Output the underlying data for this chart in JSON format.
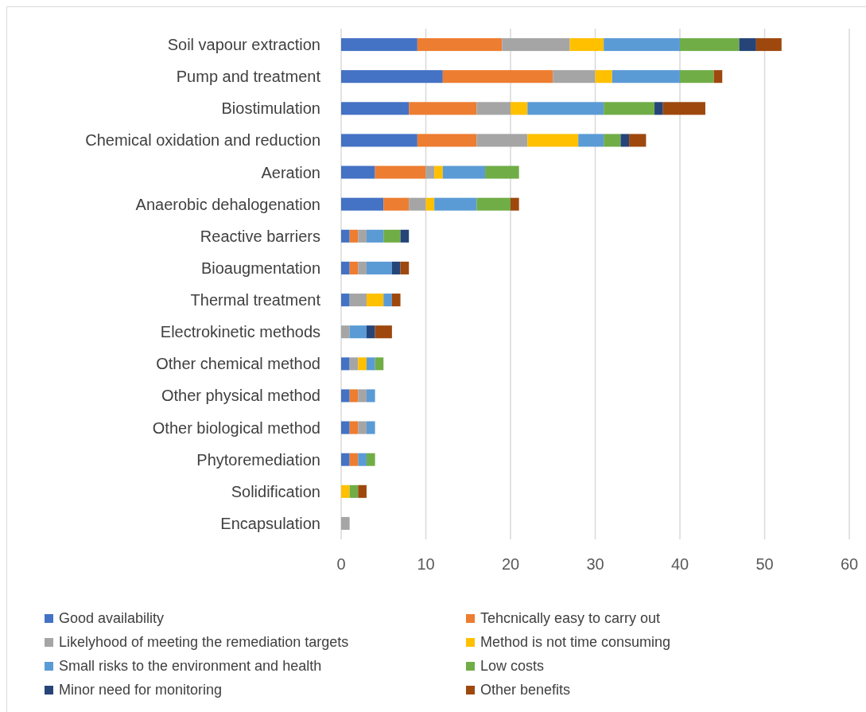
{
  "chart_data": {
    "type": "bar",
    "orientation": "horizontal",
    "stacked": true,
    "categories": [
      "Soil vapour extraction",
      "Pump and treatment",
      "Biostimulation",
      "Chemical oxidation and reduction",
      "Aeration",
      "Anaerobic dehalogenation",
      "Reactive barriers",
      "Bioaugmentation",
      "Thermal treatment",
      "Electrokinetic methods",
      "Other chemical method",
      "Other physical method",
      "Other biological method",
      "Phytoremediation",
      "Solidification",
      "Encapsulation"
    ],
    "series": [
      {
        "name": "Good availability",
        "color": "#4472c4",
        "values": [
          9,
          12,
          8,
          9,
          4,
          5,
          1,
          1,
          1,
          0,
          1,
          1,
          1,
          1,
          0,
          0
        ]
      },
      {
        "name": "Tehcnically easy to carry out",
        "color": "#ed7d31",
        "values": [
          10,
          13,
          8,
          7,
          6,
          3,
          1,
          1,
          0,
          0,
          0,
          1,
          1,
          1,
          0,
          0
        ]
      },
      {
        "name": "Likelyhood of meeting the remediation targets",
        "color": "#a5a5a5",
        "values": [
          8,
          5,
          4,
          6,
          1,
          2,
          1,
          1,
          2,
          1,
          1,
          1,
          1,
          0,
          0,
          1
        ]
      },
      {
        "name": "Method is not time consuming",
        "color": "#ffc000",
        "values": [
          4,
          2,
          2,
          6,
          1,
          1,
          0,
          0,
          2,
          0,
          1,
          0,
          0,
          0,
          1,
          0
        ]
      },
      {
        "name": "Small risks to the environment and health",
        "color": "#5b9bd5",
        "values": [
          9,
          8,
          9,
          3,
          5,
          5,
          2,
          3,
          1,
          2,
          1,
          1,
          1,
          1,
          0,
          0
        ]
      },
      {
        "name": "Low costs",
        "color": "#70ad47",
        "values": [
          7,
          4,
          6,
          2,
          4,
          4,
          2,
          0,
          0,
          0,
          1,
          0,
          0,
          1,
          1,
          0
        ]
      },
      {
        "name": "Minor need for monitoring",
        "color": "#264478",
        "values": [
          2,
          0,
          1,
          1,
          0,
          0,
          1,
          1,
          0,
          1,
          0,
          0,
          0,
          0,
          0,
          0
        ]
      },
      {
        "name": "Other benefits",
        "color": "#9e480e",
        "values": [
          3,
          1,
          5,
          2,
          0,
          1,
          0,
          1,
          1,
          2,
          0,
          0,
          0,
          0,
          1,
          0
        ]
      }
    ],
    "xlim": [
      0,
      60
    ],
    "xticks": [
      0,
      10,
      20,
      30,
      40,
      50,
      60
    ],
    "grid": "x",
    "legend": "bottom"
  }
}
